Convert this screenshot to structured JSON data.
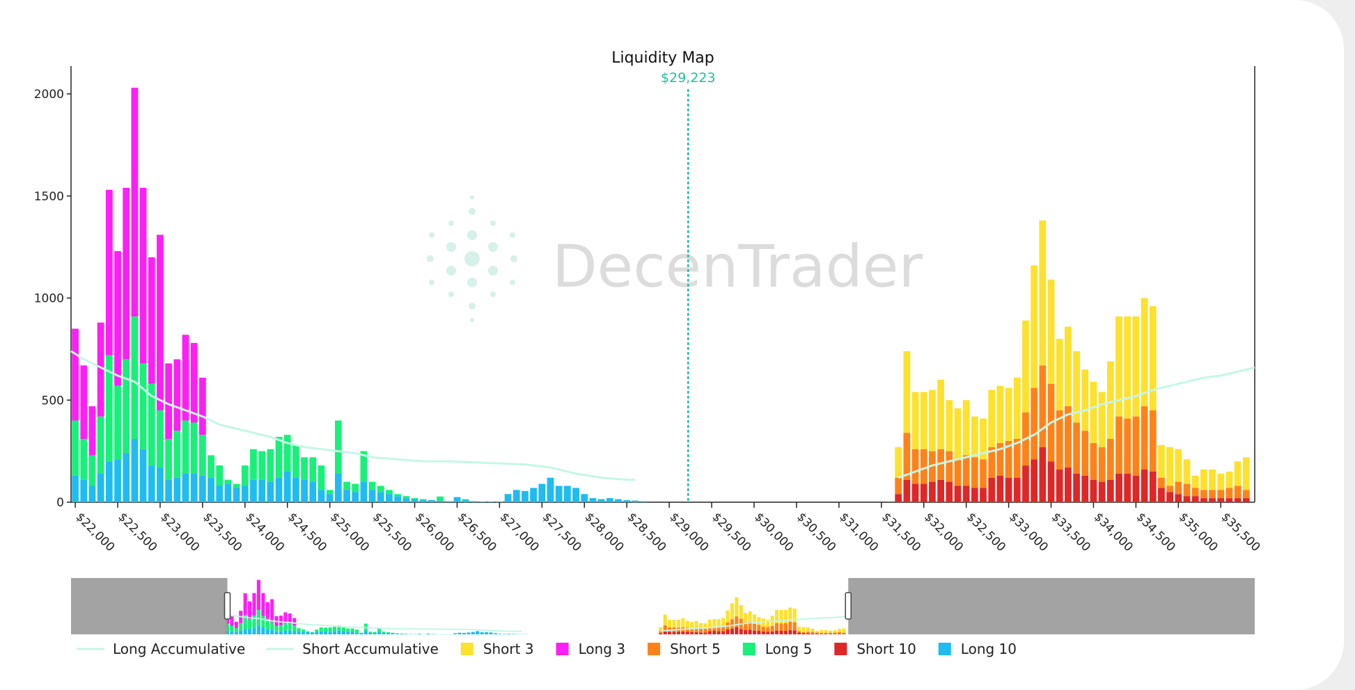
{
  "chart_data": {
    "type": "bar",
    "title": "Liquidity Map",
    "current_price_label": "$29,223",
    "current_price": 29223,
    "watermark": "DecenTrader",
    "xlim": [
      21950,
      35900
    ],
    "ylim": [
      0,
      2000
    ],
    "bin_width": 100,
    "y_ticks": [
      0,
      500,
      1000,
      1500,
      2000
    ],
    "x_tick_values": [
      22000,
      22500,
      23000,
      23500,
      24000,
      24500,
      25000,
      25500,
      26000,
      26500,
      27000,
      27500,
      28000,
      28500,
      29000,
      29500,
      30000,
      30500,
      31000,
      31500,
      32000,
      32500,
      33000,
      33500,
      34000,
      34500,
      35000,
      35500
    ],
    "x_tick_labels": [
      "$22,000",
      "$22,500",
      "$23,000",
      "$23,500",
      "$24,000",
      "$24,500",
      "$25,000",
      "$25,500",
      "$26,000",
      "$26,500",
      "$27,000",
      "$27,500",
      "$28,000",
      "$28,500",
      "$29,000",
      "$29,500",
      "$30,000",
      "$30,500",
      "$31,000",
      "$31,500",
      "$32,000",
      "$32,500",
      "$33,000",
      "$33,500",
      "$34,000",
      "$34,500",
      "$35,000",
      "$35,500"
    ],
    "series": [
      {
        "name": "Long 10",
        "color": "#1ebcf0",
        "x": [
          22000,
          22100,
          22200,
          22300,
          22400,
          22500,
          22600,
          22700,
          22800,
          22900,
          23000,
          23100,
          23200,
          23300,
          23400,
          23500,
          23600,
          23700,
          23800,
          23900,
          24000,
          24100,
          24200,
          24300,
          24400,
          24500,
          24600,
          24700,
          24800,
          24900,
          25000,
          25100,
          25200,
          25300,
          25400,
          25500,
          25600,
          25700,
          25800,
          25900,
          26000,
          26100,
          26200,
          26300,
          26400,
          26500,
          26600,
          26700,
          26800,
          26900,
          27000,
          27100,
          27200,
          27300,
          27400,
          27500,
          27600,
          27700,
          27800,
          27900,
          28000,
          28100,
          28200,
          28300,
          28400,
          28500,
          28600,
          28700
        ],
        "values": [
          130,
          110,
          80,
          140,
          200,
          210,
          240,
          310,
          260,
          180,
          170,
          110,
          120,
          140,
          140,
          130,
          120,
          80,
          90,
          70,
          80,
          110,
          110,
          100,
          120,
          150,
          120,
          110,
          100,
          60,
          40,
          140,
          60,
          50,
          100,
          60,
          50,
          40,
          30,
          20,
          15,
          10,
          10,
          8,
          5,
          25,
          10,
          5,
          3,
          2,
          2,
          40,
          60,
          55,
          70,
          90,
          120,
          80,
          80,
          70,
          40,
          20,
          15,
          20,
          15,
          10,
          8,
          5
        ]
      },
      {
        "name": "Long 5",
        "color": "#18f07a",
        "x": [
          22000,
          22100,
          22200,
          22300,
          22400,
          22500,
          22600,
          22700,
          22800,
          22900,
          23000,
          23100,
          23200,
          23300,
          23400,
          23500,
          23600,
          23700,
          23800,
          23900,
          24000,
          24100,
          24200,
          24300,
          24400,
          24500,
          24600,
          24700,
          24800,
          24900,
          25000,
          25100,
          25200,
          25300,
          25400,
          25500,
          25600,
          25700,
          25800,
          25900,
          26000,
          26100,
          26200,
          26300,
          26400,
          26500,
          26600
        ],
        "values": [
          270,
          200,
          150,
          280,
          520,
          360,
          460,
          600,
          420,
          400,
          280,
          200,
          230,
          260,
          250,
          200,
          110,
          100,
          20,
          20,
          100,
          150,
          140,
          160,
          200,
          180,
          160,
          110,
          120,
          120,
          20,
          260,
          40,
          40,
          150,
          40,
          30,
          20,
          10,
          10,
          5,
          5,
          0,
          20,
          0,
          0,
          5
        ]
      },
      {
        "name": "Long 3",
        "color": "#ff1ef6",
        "x": [
          22000,
          22100,
          22200,
          22300,
          22400,
          22500,
          22600,
          22700,
          22800,
          22900,
          23000,
          23100,
          23200,
          23300,
          23400,
          23500
        ],
        "values": [
          450,
          360,
          240,
          460,
          810,
          660,
          840,
          1120,
          860,
          620,
          860,
          370,
          350,
          420,
          390,
          280
        ]
      },
      {
        "name": "Short 10",
        "color": "#de2726",
        "x": [
          31700,
          31800,
          31900,
          32000,
          32100,
          32200,
          32300,
          32400,
          32500,
          32600,
          32700,
          32800,
          32900,
          33000,
          33100,
          33200,
          33300,
          33400,
          33500,
          33600,
          33700,
          33800,
          33900,
          34000,
          34100,
          34200,
          34300,
          34400,
          34500,
          34600,
          34700,
          34800,
          34900,
          35000,
          35100,
          35200,
          35300,
          35400,
          35500,
          35600,
          35700,
          35800
        ],
        "values": [
          40,
          110,
          90,
          90,
          100,
          110,
          100,
          80,
          80,
          70,
          70,
          120,
          130,
          120,
          120,
          180,
          210,
          270,
          200,
          160,
          170,
          140,
          130,
          110,
          100,
          110,
          140,
          140,
          130,
          160,
          150,
          70,
          50,
          40,
          30,
          30,
          20,
          20,
          20,
          20,
          20,
          20
        ]
      },
      {
        "name": "Short 5",
        "color": "#ff8218",
        "x": [
          31700,
          31800,
          31900,
          32000,
          32100,
          32200,
          32300,
          32400,
          32500,
          32600,
          32700,
          32800,
          32900,
          33000,
          33100,
          33200,
          33300,
          33400,
          33500,
          33600,
          33700,
          33800,
          33900,
          34000,
          34100,
          34200,
          34300,
          34400,
          34500,
          34600,
          34700,
          34800,
          34900,
          35000,
          35100,
          35200,
          35300,
          35400,
          35500,
          35600,
          35700,
          35800
        ],
        "values": [
          80,
          230,
          170,
          170,
          150,
          150,
          150,
          130,
          150,
          150,
          140,
          150,
          160,
          180,
          190,
          260,
          350,
          400,
          380,
          290,
          300,
          250,
          220,
          180,
          170,
          200,
          280,
          270,
          290,
          310,
          300,
          50,
          30,
          60,
          60,
          40,
          40,
          40,
          40,
          50,
          60,
          40
        ]
      },
      {
        "name": "Short 3",
        "color": "#fde12d",
        "x": [
          31700,
          31800,
          31900,
          32000,
          32100,
          32200,
          32300,
          32400,
          32500,
          32600,
          32700,
          32800,
          32900,
          33000,
          33100,
          33200,
          33300,
          33400,
          33500,
          33600,
          33700,
          33800,
          33900,
          34000,
          34100,
          34200,
          34300,
          34400,
          34500,
          34600,
          34700,
          34800,
          34900,
          35000,
          35100,
          35200,
          35300,
          35400,
          35500,
          35600,
          35700,
          35800
        ],
        "values": [
          150,
          400,
          280,
          280,
          300,
          340,
          250,
          250,
          270,
          200,
          200,
          280,
          280,
          260,
          300,
          450,
          600,
          710,
          510,
          350,
          390,
          350,
          300,
          300,
          270,
          380,
          490,
          500,
          490,
          530,
          510,
          160,
          190,
          160,
          120,
          60,
          100,
          100,
          80,
          80,
          120,
          160
        ]
      },
      {
        "name": "Long Accumulative",
        "color": "#c4f7e6",
        "x": [
          21950,
          22100,
          22300,
          22500,
          22700,
          22900,
          23100,
          23300,
          23500,
          23700,
          23900,
          24100,
          24300,
          24500,
          24700,
          24900,
          25100,
          25300,
          25500,
          25800,
          26100,
          26400,
          26700,
          27000,
          27300,
          27600,
          27900,
          28200,
          28500,
          28600
        ],
        "values": [
          740,
          700,
          660,
          620,
          590,
          520,
          480,
          450,
          420,
          380,
          360,
          340,
          320,
          290,
          270,
          260,
          250,
          240,
          220,
          210,
          200,
          200,
          195,
          190,
          185,
          170,
          140,
          120,
          110,
          110
        ]
      },
      {
        "name": "Short Accumulative",
        "color": "#c4f7e6",
        "x": [
          31700,
          31900,
          32100,
          32300,
          32500,
          32700,
          32900,
          33100,
          33300,
          33500,
          33700,
          33900,
          34100,
          34300,
          34500,
          34700,
          34900,
          35100,
          35300,
          35500,
          35700,
          35900
        ],
        "values": [
          120,
          150,
          180,
          200,
          220,
          240,
          260,
          290,
          330,
          390,
          430,
          450,
          480,
          500,
          520,
          550,
          570,
          590,
          610,
          620,
          640,
          660
        ]
      }
    ],
    "stack_order": [
      "Long 10",
      "Long 5",
      "Long 3",
      "Short 10",
      "Short 5",
      "Short 3"
    ],
    "line_series": [
      "Long Accumulative",
      "Short Accumulative"
    ],
    "legend": {
      "placement": "bottom",
      "items": [
        {
          "label": "Long Accumulative",
          "kind": "line",
          "color": "#c4f7e6"
        },
        {
          "label": "Short Accumulative",
          "kind": "line",
          "color": "#c4f7e6"
        },
        {
          "label": "Short 3",
          "kind": "box",
          "color": "#fde12d"
        },
        {
          "label": "Long 3",
          "kind": "box",
          "color": "#ff1ef6"
        },
        {
          "label": "Short 5",
          "kind": "box",
          "color": "#ff8218"
        },
        {
          "label": "Long 5",
          "kind": "box",
          "color": "#18f07a"
        },
        {
          "label": "Short 10",
          "kind": "box",
          "color": "#de2726"
        },
        {
          "label": "Long 10",
          "kind": "box",
          "color": "#1ebcf0"
        }
      ]
    },
    "range_selector": {
      "visible_range": [
        22000,
        35900
      ],
      "full_range": [
        18500,
        45000
      ]
    },
    "colors": {
      "current_price": "#19c0a0",
      "range_mask": "#999999",
      "watermark": "#dcdcdc"
    }
  }
}
